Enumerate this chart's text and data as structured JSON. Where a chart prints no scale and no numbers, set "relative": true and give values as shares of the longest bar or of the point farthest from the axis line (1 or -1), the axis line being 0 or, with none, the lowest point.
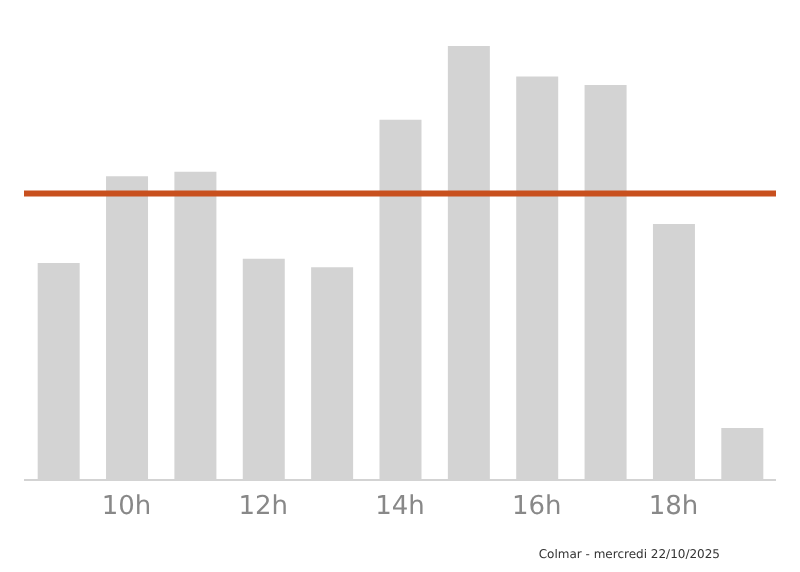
{
  "chart_data": {
    "type": "bar",
    "relative": true,
    "categories": [
      null,
      "10h",
      null,
      "12h",
      null,
      "14h",
      null,
      "16h",
      null,
      "18h",
      null
    ],
    "values": [
      0.5,
      0.7,
      0.71,
      0.51,
      0.49,
      0.83,
      1,
      0.93,
      0.91,
      0.59,
      0.12
    ],
    "color": "#d3d3d3",
    "ref_lines": [
      {
        "axis": "y",
        "value": 0.66,
        "color": "#c8501e"
      }
    ],
    "annotations": [
      "Colmar - mercredi 22/10/2025"
    ],
    "grid": false
  }
}
